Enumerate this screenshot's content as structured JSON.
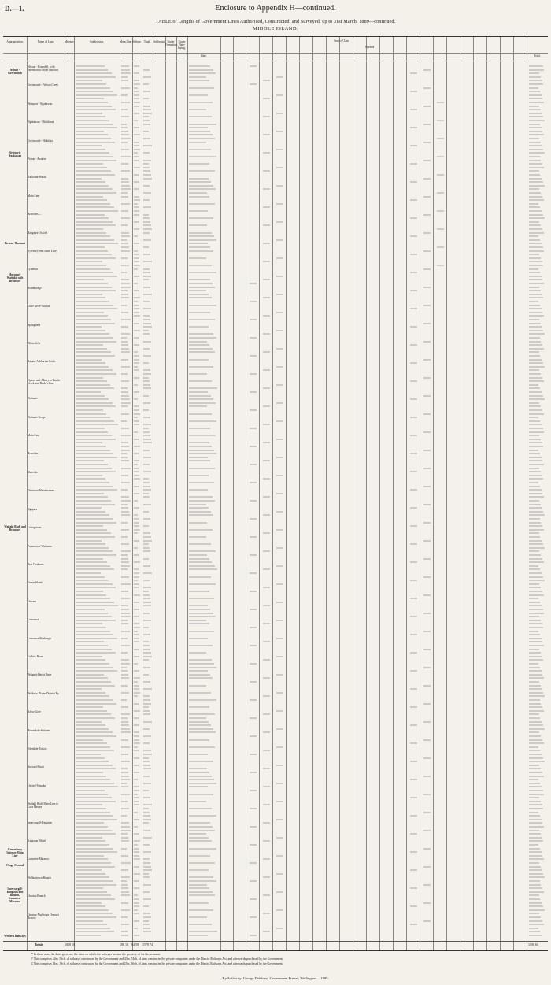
{
  "header": {
    "label": "D.—1.",
    "enclosure": "Enclosure to Appendix H—continued.",
    "title": "TABLE of Lengths of Government Lines Authorised, Constructed, and Surveyed, up to 31st March, 1889—continued.",
    "island": "MIDDLE ISLAND."
  },
  "columns": {
    "appropriation": "Appropriation.",
    "name_of_line": "Name of Line.",
    "mileage": "Mileage.",
    "subdivision": "Subdivision.",
    "main_line": "Main Line.",
    "sidings": "Sidings.",
    "total": "Total.",
    "not_begun": "Not begun.",
    "under_formation": "Under Formation.",
    "under_plate_laying": "Under Plate-laying.",
    "state_of_line": "State of Line.",
    "opened": "Opened.",
    "date": "Date.",
    "total_opened": "Total."
  },
  "appropriations": [
    "Nelson - Greymouth",
    "Westport - Ngakawau",
    "Picton - Hurunui",
    "Hurunui - Waitaki, with Branches",
    "Waitaki Bluff and Branches",
    "Canterbury Interior Main Line",
    "Otago Central",
    "Invercargill-Kingston and Branch, Lumsden-Mararoa",
    "Western Railways"
  ],
  "line_names": [
    "Nelson - Roundell, with extension to Hope Junction",
    "Greymouth - Nelson Creek",
    "Westport - Ngakawau",
    "Ngakawau - Mokihinui",
    "Greymouth - Hokitika",
    "Picton - Awatere",
    "Kaikoura-Waiau",
    "Main Line",
    "Branches—",
    "Rangiora-Oxford",
    "Eyreton (from Main Line)",
    "Lyttelton",
    "Southbridge",
    "Little River-Akaroa",
    "Springfield",
    "Whitecliffs",
    "Rakaia-Ashburton Forks",
    "Opawa and Albury to Fairlie Creek and Burke's Pass",
    "Waimate",
    "Waimate Gorge",
    "Main Line",
    "Branches—",
    "Dunedin",
    "Duntroon-Hakataramea",
    "Ngapara",
    "Livingstone",
    "Palmerston-Waihemo",
    "Port Chalmers",
    "Green Island",
    "Outram",
    "Lawrence",
    "Lawrence-Roxburgh",
    "Catlin's River",
    "Waipahi-Heriot Burn",
    "Waikaka, Plains District Ry.",
    "Kelso-Gore",
    "Riversdale-Switzers",
    "Edendale-Toitois",
    "Seaward Bush",
    "Oxford-Temuka",
    "Waitaki Bluff Main Line to Lake Hawea",
    "Invercargill-Kingston",
    "Kingston Wharf",
    "Lumsden-Mararoa",
    "Wallacetown Branch",
    "Otautau Branch",
    "Otautau-Nightcaps Orepuki Branch"
  ],
  "totals": {
    "label": "Totals",
    "mileage": "1058 18",
    "main_line": "188 18",
    "sidings": "84 58",
    "total": "1578 74",
    "total_opened": "1100 65"
  },
  "footnotes": [
    "* In these cases the dates given are the dates on which the railways became the property of the Government.",
    "† This comprises 42m. 56ch. of railways constructed by the Government and 43m. 74ch. of lines constructed by private companies under the District Railways Act, and afterwards purchased by the Government.",
    "‡ This comprises 11m. 19ch. of railways constructed by the Government and 25m. 56ch. of lines constructed by private companies under the District Railways Act, and afterwards purchased by the Government."
  ],
  "printer": "By Authority: George Didsbury, Government Printer, Wellington.—1889."
}
